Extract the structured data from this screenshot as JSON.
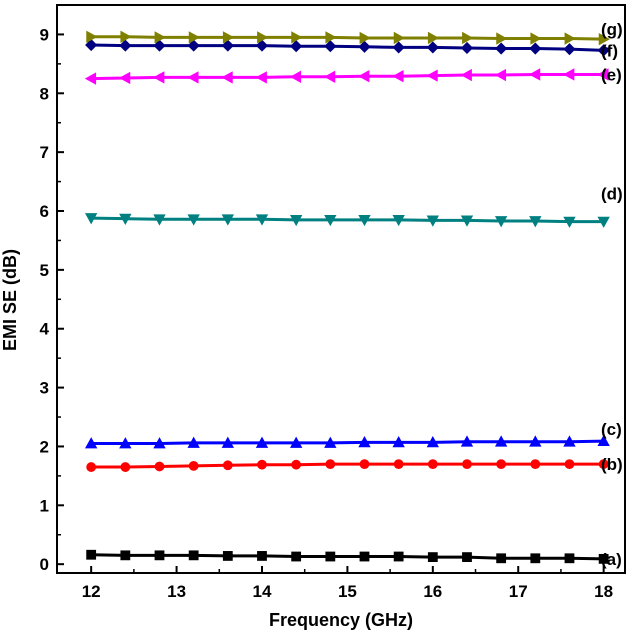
{
  "chart_data": {
    "type": "line",
    "xlabel": "Frequency (GHz)",
    "ylabel": "EMI SE (dB)",
    "xlim": [
      11.6,
      18.25
    ],
    "ylim": [
      -0.15,
      9.5
    ],
    "xticks": [
      12,
      13,
      14,
      15,
      16,
      17,
      18
    ],
    "yticks": [
      0,
      1,
      2,
      3,
      4,
      5,
      6,
      7,
      8,
      9
    ],
    "grid": false,
    "x": [
      12.0,
      12.4,
      12.8,
      13.2,
      13.6,
      14.0,
      14.4,
      14.8,
      15.2,
      15.6,
      16.0,
      16.4,
      16.8,
      17.2,
      17.6,
      18.0
    ],
    "series": [
      {
        "name": "(a)",
        "color": "#000000",
        "marker": "square",
        "values": [
          0.16,
          0.15,
          0.15,
          0.15,
          0.14,
          0.14,
          0.13,
          0.13,
          0.13,
          0.13,
          0.12,
          0.12,
          0.1,
          0.1,
          0.1,
          0.09
        ]
      },
      {
        "name": "(b)",
        "color": "#ff0000",
        "marker": "circle",
        "values": [
          1.65,
          1.65,
          1.66,
          1.67,
          1.68,
          1.69,
          1.69,
          1.7,
          1.7,
          1.7,
          1.7,
          1.7,
          1.7,
          1.7,
          1.7,
          1.7
        ]
      },
      {
        "name": "(c)",
        "color": "#0000ff",
        "marker": "triangle-up",
        "values": [
          2.05,
          2.05,
          2.05,
          2.06,
          2.06,
          2.06,
          2.06,
          2.06,
          2.07,
          2.07,
          2.07,
          2.08,
          2.08,
          2.08,
          2.08,
          2.09
        ]
      },
      {
        "name": "(d)",
        "color": "#008080",
        "marker": "triangle-down",
        "values": [
          5.88,
          5.87,
          5.86,
          5.86,
          5.86,
          5.86,
          5.85,
          5.85,
          5.85,
          5.85,
          5.84,
          5.84,
          5.83,
          5.83,
          5.82,
          5.82
        ]
      },
      {
        "name": "(e)",
        "color": "#ff00ff",
        "marker": "triangle-left",
        "values": [
          8.25,
          8.26,
          8.27,
          8.27,
          8.27,
          8.27,
          8.28,
          8.28,
          8.29,
          8.29,
          8.3,
          8.31,
          8.31,
          8.32,
          8.32,
          8.32
        ]
      },
      {
        "name": "(f)",
        "color": "#000080",
        "marker": "diamond",
        "values": [
          8.82,
          8.81,
          8.81,
          8.81,
          8.81,
          8.81,
          8.8,
          8.8,
          8.79,
          8.78,
          8.78,
          8.77,
          8.76,
          8.76,
          8.75,
          8.73
        ]
      },
      {
        "name": "(g)",
        "color": "#808000",
        "marker": "triangle-right",
        "values": [
          8.96,
          8.96,
          8.95,
          8.95,
          8.95,
          8.95,
          8.95,
          8.95,
          8.94,
          8.94,
          8.94,
          8.94,
          8.93,
          8.93,
          8.93,
          8.92
        ]
      }
    ]
  }
}
